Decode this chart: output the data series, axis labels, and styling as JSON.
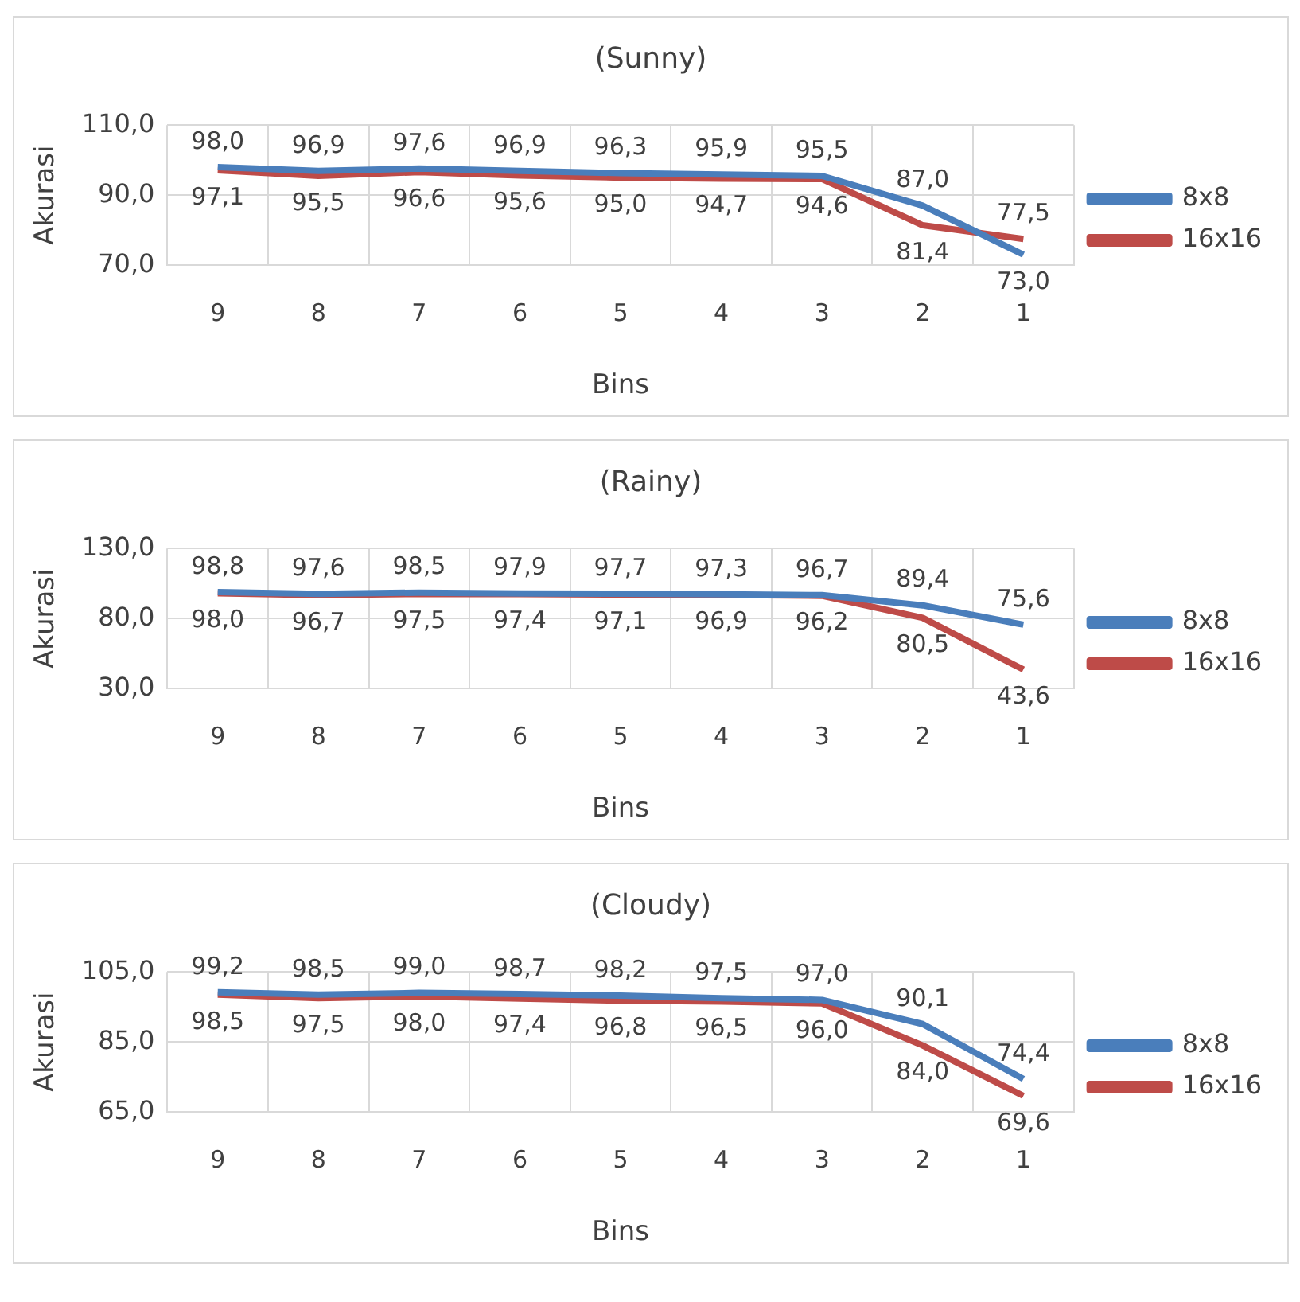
{
  "chart_data": [
    {
      "type": "line",
      "title": "(Sunny)",
      "xlabel": "Bins",
      "ylabel": "Akurasi",
      "categories": [
        "9",
        "8",
        "7",
        "6",
        "5",
        "4",
        "3",
        "2",
        "1"
      ],
      "ylim": [
        70,
        110
      ],
      "yticks": [
        {
          "value": 70,
          "label": "70,0"
        },
        {
          "value": 90,
          "label": "90,0"
        },
        {
          "value": 110,
          "label": "110,0"
        }
      ],
      "grid": true,
      "legend": "right",
      "marker": "none",
      "series": [
        {
          "name": "8x8",
          "color": "#4a7ebb",
          "values": [
            98.0,
            96.9,
            97.6,
            96.9,
            96.3,
            95.9,
            95.5,
            87.0,
            73.0
          ],
          "value_labels": [
            "98,0",
            "96,9",
            "97,6",
            "96,9",
            "96,3",
            "95,9",
            "95,5",
            "87,0",
            "73,0"
          ]
        },
        {
          "name": "16x16",
          "color": "#be4b48",
          "values": [
            97.1,
            95.5,
            96.6,
            95.6,
            95.0,
            94.7,
            94.6,
            81.4,
            77.5
          ],
          "value_labels": [
            "97,1",
            "95,5",
            "96,6",
            "95,6",
            "95,0",
            "94,7",
            "94,6",
            "81,4",
            "77,5"
          ]
        }
      ]
    },
    {
      "type": "line",
      "title": "(Rainy)",
      "xlabel": "Bins",
      "ylabel": "Akurasi",
      "categories": [
        "9",
        "8",
        "7",
        "6",
        "5",
        "4",
        "3",
        "2",
        "1"
      ],
      "ylim": [
        30,
        130
      ],
      "yticks": [
        {
          "value": 30,
          "label": "30,0"
        },
        {
          "value": 80,
          "label": "80,0"
        },
        {
          "value": 130,
          "label": "130,0"
        }
      ],
      "grid": true,
      "legend": "right",
      "marker": "none",
      "series": [
        {
          "name": "8x8",
          "color": "#4a7ebb",
          "values": [
            98.8,
            97.6,
            98.5,
            97.9,
            97.7,
            97.3,
            96.7,
            89.4,
            75.6
          ],
          "value_labels": [
            "98,8",
            "97,6",
            "98,5",
            "97,9",
            "97,7",
            "97,3",
            "96,7",
            "89,4",
            "75,6"
          ]
        },
        {
          "name": "16x16",
          "color": "#be4b48",
          "values": [
            98.0,
            96.7,
            97.5,
            97.4,
            97.1,
            96.9,
            96.2,
            80.5,
            43.6
          ],
          "value_labels": [
            "98,0",
            "96,7",
            "97,5",
            "97,4",
            "97,1",
            "96,9",
            "96,2",
            "80,5",
            "43,6"
          ]
        }
      ]
    },
    {
      "type": "line",
      "title": "(Cloudy)",
      "xlabel": "Bins",
      "ylabel": "Akurasi",
      "categories": [
        "9",
        "8",
        "7",
        "6",
        "5",
        "4",
        "3",
        "2",
        "1"
      ],
      "ylim": [
        65,
        105
      ],
      "yticks": [
        {
          "value": 65,
          "label": "65,0"
        },
        {
          "value": 85,
          "label": "85,0"
        },
        {
          "value": 105,
          "label": "105,0"
        }
      ],
      "grid": true,
      "legend": "right",
      "marker": "none",
      "series": [
        {
          "name": "8x8",
          "color": "#4a7ebb",
          "values": [
            99.2,
            98.5,
            99.0,
            98.7,
            98.2,
            97.5,
            97.0,
            90.1,
            74.4
          ],
          "value_labels": [
            "99,2",
            "98,5",
            "99,0",
            "98,7",
            "98,2",
            "97,5",
            "97,0",
            "90,1",
            "74,4"
          ]
        },
        {
          "name": "16x16",
          "color": "#be4b48",
          "values": [
            98.5,
            97.5,
            98.0,
            97.4,
            96.8,
            96.5,
            96.0,
            84.0,
            69.6
          ],
          "value_labels": [
            "98,5",
            "97,5",
            "98,0",
            "97,4",
            "96,8",
            "96,5",
            "96,0",
            "84,0",
            "69,6"
          ]
        }
      ]
    }
  ]
}
